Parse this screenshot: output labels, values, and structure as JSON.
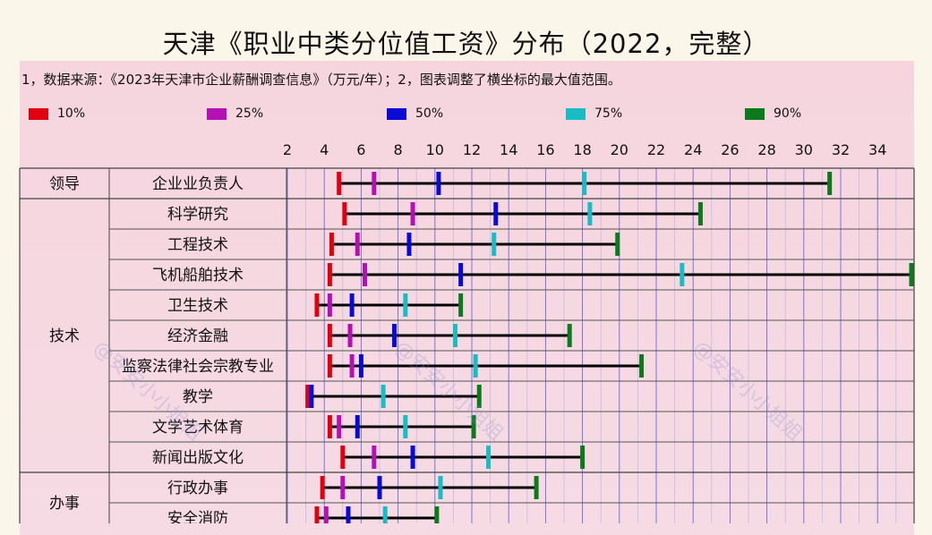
{
  "title": "天津《职业中类分位值工资》分布（2022，完整）",
  "note": "1，数据来源：《2023年天津市企业薪酬调查信息》（万元/年）；2，图表调整了横坐标的最大值范围。",
  "watermark": "@安安小小姐姐",
  "chart_data": {
    "type": "range-dot",
    "x_ticks": [
      2,
      4,
      6,
      8,
      10,
      12,
      14,
      16,
      18,
      20,
      22,
      24,
      26,
      28,
      30,
      32,
      34
    ],
    "xlim": [
      2,
      36
    ],
    "legend_placement": "top",
    "series": [
      {
        "name": "10%",
        "color": "#e0000f"
      },
      {
        "name": "25%",
        "color": "#b410b4"
      },
      {
        "name": "50%",
        "color": "#0a0ad6"
      },
      {
        "name": "75%",
        "color": "#18bcc4"
      },
      {
        "name": "90%",
        "color": "#0b7a1c"
      }
    ],
    "groups": [
      {
        "name": "领导",
        "rows": [
          {
            "label": "企业业负责人",
            "values": [
              4.8,
              6.7,
              10.2,
              18.1,
              31.4
            ]
          }
        ]
      },
      {
        "name": "技术",
        "rows": [
          {
            "label": "科学研究",
            "values": [
              5.1,
              8.8,
              13.3,
              18.4,
              24.4
            ]
          },
          {
            "label": "工程技术",
            "values": [
              4.4,
              5.8,
              8.6,
              13.2,
              19.9
            ]
          },
          {
            "label": "飞机船舶技术",
            "values": [
              4.3,
              6.2,
              11.4,
              23.4,
              36.0
            ]
          },
          {
            "label": "卫生技术",
            "values": [
              3.6,
              4.3,
              5.5,
              8.4,
              11.4
            ]
          },
          {
            "label": "经济金融",
            "values": [
              4.3,
              5.4,
              7.8,
              11.1,
              17.3
            ]
          },
          {
            "label": "监察法律社会宗教专业",
            "values": [
              4.3,
              5.5,
              6.0,
              12.2,
              21.2
            ]
          },
          {
            "label": "教学",
            "values": [
              3.1,
              3.3,
              3.3,
              7.2,
              12.4
            ]
          },
          {
            "label": "文学艺术体育",
            "values": [
              4.3,
              4.8,
              5.8,
              8.4,
              12.1
            ]
          },
          {
            "label": "新闻出版文化",
            "values": [
              5.0,
              6.7,
              8.8,
              12.9,
              18.0
            ]
          }
        ]
      },
      {
        "name": "办事",
        "rows": [
          {
            "label": "行政办事",
            "values": [
              3.9,
              5.0,
              7.0,
              10.3,
              15.5
            ]
          },
          {
            "label": "安全消防",
            "values": [
              3.6,
              4.1,
              5.3,
              7.3,
              10.1
            ]
          }
        ]
      }
    ]
  }
}
